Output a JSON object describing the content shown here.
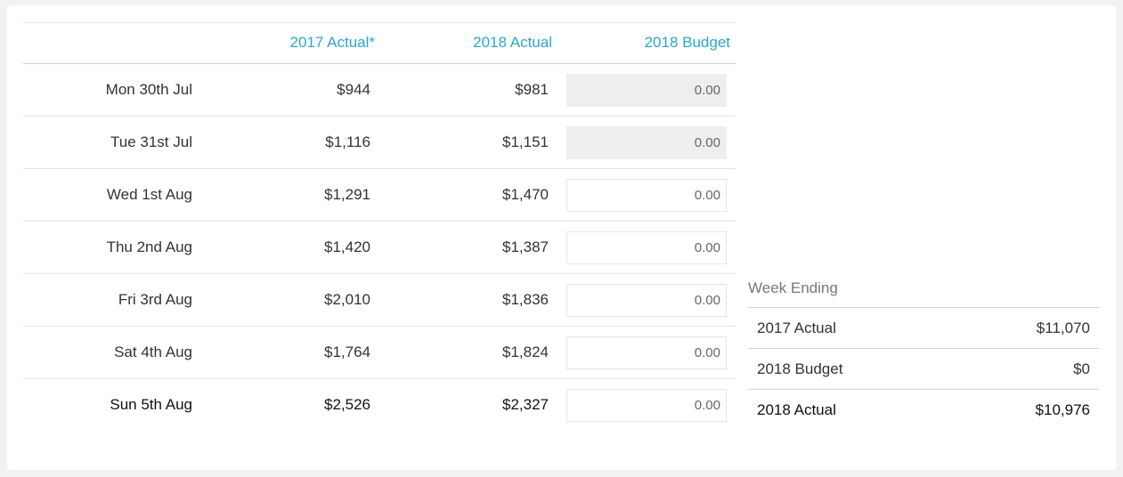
{
  "table": {
    "headers": {
      "col_2017": "2017 Actual*",
      "col_2018": "2018 Actual",
      "col_budget": "2018 Budget"
    },
    "rows": [
      {
        "date": "Mon 30th Jul",
        "actual_2017": "$944",
        "actual_2018": "$981",
        "budget": "0.00",
        "locked": true
      },
      {
        "date": "Tue 31st Jul",
        "actual_2017": "$1,116",
        "actual_2018": "$1,151",
        "budget": "0.00",
        "locked": true
      },
      {
        "date": "Wed 1st Aug",
        "actual_2017": "$1,291",
        "actual_2018": "$1,470",
        "budget": "0.00",
        "locked": false
      },
      {
        "date": "Thu 2nd Aug",
        "actual_2017": "$1,420",
        "actual_2018": "$1,387",
        "budget": "0.00",
        "locked": false
      },
      {
        "date": "Fri 3rd Aug",
        "actual_2017": "$2,010",
        "actual_2018": "$1,836",
        "budget": "0.00",
        "locked": false
      },
      {
        "date": "Sat 4th Aug",
        "actual_2017": "$1,764",
        "actual_2018": "$1,824",
        "budget": "0.00",
        "locked": false
      },
      {
        "date": "Sun 5th Aug",
        "actual_2017": "$2,526",
        "actual_2018": "$2,327",
        "budget": "0.00",
        "locked": false
      }
    ]
  },
  "summary": {
    "title": "Week Ending",
    "rows": [
      {
        "label": "2017 Actual",
        "value": "$11,070"
      },
      {
        "label": "2018 Budget",
        "value": "$0"
      },
      {
        "label": "2018 Actual",
        "value": "$10,976"
      }
    ]
  },
  "colors": {
    "accent": "#2aa7cc",
    "locked_input_bg": "#eeeeee"
  }
}
